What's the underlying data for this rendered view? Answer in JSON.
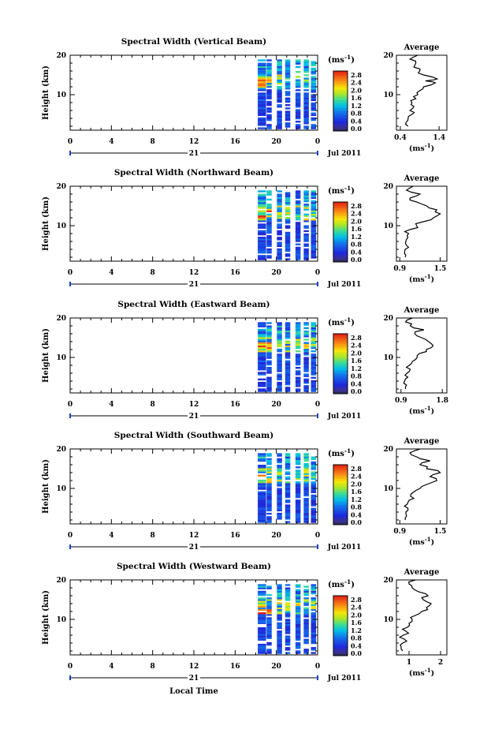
{
  "global": {
    "xlabel": "Local Time",
    "date_label": "Jul 2011",
    "day_label": "21",
    "avg_title": "Average",
    "ylabel": "Height (km)",
    "unit_label": "(ms⁻¹)",
    "unit_base": "(ms",
    "unit_exp": "-1",
    "unit_close": ")"
  },
  "chart_data": [
    {
      "type": "heatmap",
      "title": "Spectral Width (Vertical Beam)",
      "ylabel": "Height (km)",
      "xlabel": "",
      "x_ticks": [
        "0",
        "4",
        "8",
        "12",
        "16",
        "20",
        "0"
      ],
      "xlim": [
        0,
        24
      ],
      "y_ticks": [
        "10",
        "20"
      ],
      "ylim": [
        1,
        20
      ],
      "colorbar": {
        "ticks": [
          "0.0",
          "0.4",
          "0.8",
          "1.2",
          "1.6",
          "2.0",
          "2.4",
          "2.8"
        ],
        "range": [
          0,
          3.0
        ]
      },
      "data_columns_x": [
        18.6,
        19.3,
        20.3,
        21.1,
        22.1,
        22.9,
        23.6
      ],
      "average_profile": {
        "title": "Average",
        "xlabel": "(ms⁻¹)",
        "x_ticks": [
          "0.4",
          "1.4"
        ],
        "xlim": [
          0.3,
          1.6
        ],
        "y_ticks": [
          "10",
          "20"
        ],
        "heights": [
          2,
          3,
          4,
          5,
          6,
          7,
          8,
          9,
          10,
          11,
          12,
          13,
          13.5,
          14,
          15,
          16,
          17,
          18,
          19,
          20
        ],
        "values": [
          0.6,
          0.55,
          0.6,
          0.7,
          0.65,
          0.75,
          0.7,
          0.8,
          0.85,
          0.9,
          1.0,
          1.3,
          1.05,
          1.35,
          1.0,
          0.9,
          0.75,
          0.8,
          0.65,
          0.85
        ]
      }
    },
    {
      "type": "heatmap",
      "title": "Spectral Width (Northward Beam)",
      "ylabel": "Height (km)",
      "xlabel": "",
      "x_ticks": [
        "0",
        "4",
        "8",
        "12",
        "16",
        "20",
        "0"
      ],
      "xlim": [
        0,
        24
      ],
      "y_ticks": [
        "10",
        "20"
      ],
      "ylim": [
        1,
        20
      ],
      "colorbar": {
        "ticks": [
          "0.0",
          "0.4",
          "0.8",
          "1.2",
          "1.6",
          "2.0",
          "2.4",
          "2.8"
        ],
        "range": [
          0,
          3.0
        ]
      },
      "data_columns_x": [
        18.6,
        19.3,
        20.3,
        21.1,
        22.1,
        22.9,
        23.6
      ],
      "average_profile": {
        "title": "Average",
        "xlabel": "(ms⁻¹)",
        "x_ticks": [
          "0.9",
          "1.5"
        ],
        "xlim": [
          0.85,
          1.6
        ],
        "y_ticks": [
          "10",
          "20"
        ],
        "heights": [
          2,
          3,
          4,
          5,
          6,
          7,
          8,
          9,
          10,
          11,
          12,
          13,
          14,
          15,
          16,
          17,
          18,
          19,
          20
        ],
        "values": [
          0.98,
          0.97,
          0.98,
          1.0,
          0.99,
          1.02,
          1.03,
          1.05,
          1.15,
          1.25,
          1.4,
          1.5,
          1.45,
          1.3,
          1.15,
          1.05,
          1.2,
          1.0,
          1.1
        ]
      }
    },
    {
      "type": "heatmap",
      "title": "Spectral Width (Eastward Beam)",
      "ylabel": "Height (km)",
      "xlabel": "",
      "x_ticks": [
        "0",
        "4",
        "8",
        "12",
        "16",
        "20",
        "0"
      ],
      "xlim": [
        0,
        24
      ],
      "y_ticks": [
        "10",
        "20"
      ],
      "ylim": [
        1,
        20
      ],
      "colorbar": {
        "ticks": [
          "0.0",
          "0.4",
          "0.8",
          "1.2",
          "1.6",
          "2.0",
          "2.4",
          "2.8"
        ],
        "range": [
          0,
          3.0
        ]
      },
      "data_columns_x": [
        18.6,
        19.3,
        20.3,
        21.1,
        22.1,
        22.9,
        23.6
      ],
      "average_profile": {
        "title": "Average",
        "xlabel": "(ms⁻¹)",
        "x_ticks": [
          "0.9",
          "1.8"
        ],
        "xlim": [
          0.8,
          1.9
        ],
        "y_ticks": [
          "10",
          "20"
        ],
        "heights": [
          2,
          3,
          4,
          5,
          6,
          7,
          8,
          9,
          10,
          11,
          12,
          13,
          14,
          15,
          16,
          17,
          18,
          19,
          20
        ],
        "values": [
          1.0,
          1.02,
          0.98,
          1.05,
          1.03,
          1.1,
          1.08,
          1.15,
          1.25,
          1.3,
          1.45,
          1.6,
          1.5,
          1.35,
          1.2,
          1.4,
          1.1,
          1.0,
          1.15
        ]
      }
    },
    {
      "type": "heatmap",
      "title": "Spectral Width (Southward Beam)",
      "ylabel": "Height (km)",
      "xlabel": "",
      "x_ticks": [
        "0",
        "4",
        "8",
        "12",
        "16",
        "20",
        "0"
      ],
      "xlim": [
        0,
        24
      ],
      "y_ticks": [
        "10",
        "20"
      ],
      "ylim": [
        1,
        20
      ],
      "colorbar": {
        "ticks": [
          "0.0",
          "0.4",
          "0.8",
          "1.2",
          "1.6",
          "2.0",
          "2.4",
          "2.8"
        ],
        "range": [
          0,
          3.0
        ]
      },
      "data_columns_x": [
        18.6,
        19.3,
        20.3,
        21.1,
        22.1,
        22.9,
        23.6
      ],
      "average_profile": {
        "title": "Average",
        "xlabel": "(ms⁻¹)",
        "x_ticks": [
          "0.9",
          "1.5"
        ],
        "xlim": [
          0.85,
          1.6
        ],
        "y_ticks": [
          "10",
          "20"
        ],
        "heights": [
          2,
          3,
          4,
          5,
          6,
          7,
          8,
          9,
          10,
          11,
          12,
          13,
          14,
          15,
          16,
          17,
          18,
          19,
          20
        ],
        "values": [
          0.98,
          1.0,
          0.99,
          1.02,
          1.01,
          1.04,
          1.06,
          1.1,
          1.2,
          1.3,
          1.45,
          1.35,
          1.5,
          1.3,
          1.2,
          1.35,
          1.15,
          1.05,
          1.2
        ]
      }
    },
    {
      "type": "heatmap",
      "title": "Spectral Width (Westward Beam)",
      "ylabel": "Height (km)",
      "xlabel": "Local Time",
      "x_ticks": [
        "0",
        "4",
        "8",
        "12",
        "16",
        "20",
        "0"
      ],
      "xlim": [
        0,
        24
      ],
      "y_ticks": [
        "10",
        "20"
      ],
      "ylim": [
        1,
        20
      ],
      "colorbar": {
        "ticks": [
          "0.0",
          "0.4",
          "0.8",
          "1.2",
          "1.6",
          "2.0",
          "2.4",
          "2.8"
        ],
        "range": [
          0,
          3.0
        ]
      },
      "data_columns_x": [
        18.6,
        19.3,
        20.3,
        21.1,
        22.1,
        22.9,
        23.6
      ],
      "average_profile": {
        "title": "Average",
        "xlabel": "(ms⁻¹)",
        "x_ticks": [
          "1",
          "2"
        ],
        "xlim": [
          0.6,
          2.2
        ],
        "y_ticks": [
          "10",
          "20"
        ],
        "heights": [
          2,
          3,
          4,
          5,
          6,
          7,
          8,
          9,
          10,
          11,
          12,
          13,
          14,
          15,
          16,
          17,
          18,
          19,
          20
        ],
        "values": [
          0.8,
          0.75,
          0.8,
          0.85,
          0.82,
          0.9,
          0.95,
          1.0,
          1.1,
          1.2,
          1.4,
          1.55,
          1.7,
          1.45,
          1.6,
          1.3,
          1.1,
          1.0,
          1.2
        ]
      }
    }
  ]
}
